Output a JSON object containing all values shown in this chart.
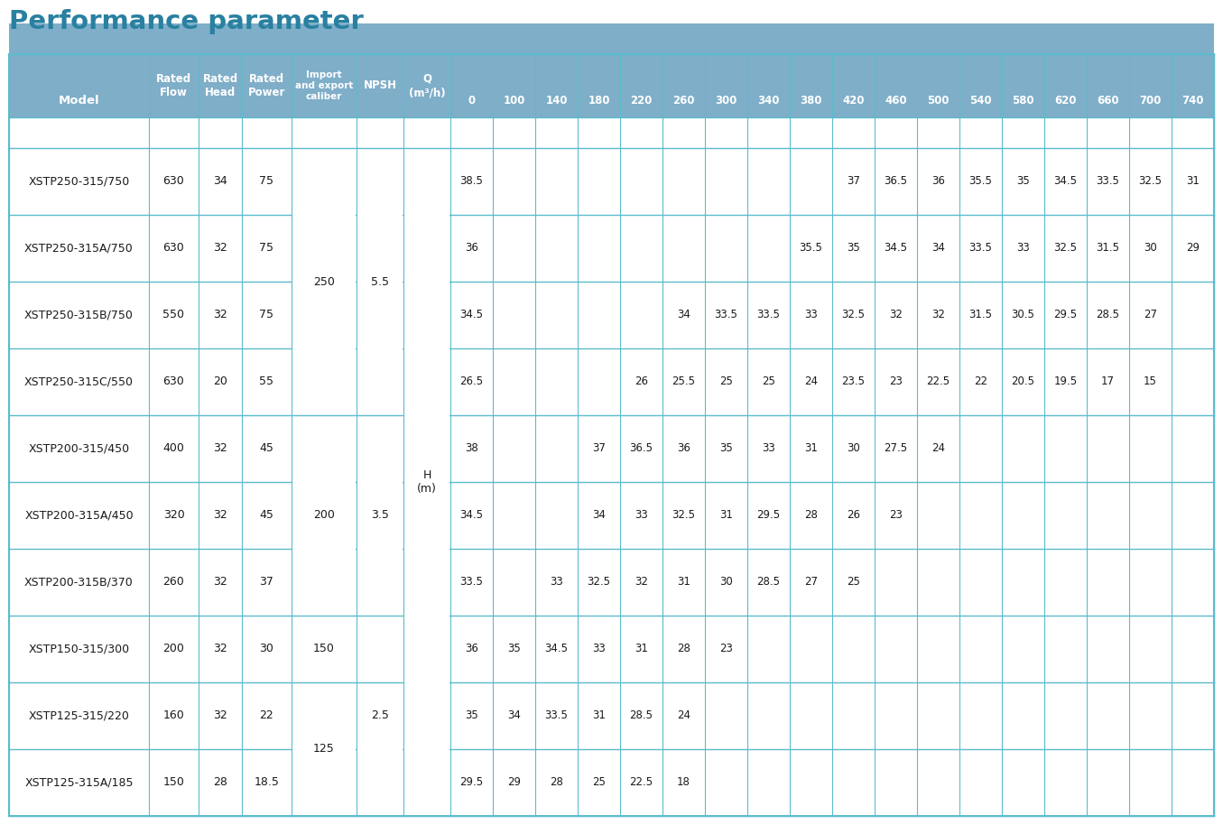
{
  "title": "Performance parameter",
  "title_color": "#2980a0",
  "header_bg": "#7faec8",
  "header_text_color": "#ffffff",
  "grid_color": "#5bbccc",
  "q_values": [
    0,
    100,
    140,
    180,
    220,
    260,
    300,
    340,
    380,
    420,
    460,
    500,
    540,
    580,
    620,
    660,
    700,
    740
  ],
  "rows": [
    {
      "model": "XSTP250-315/750",
      "flow": "630",
      "head": "34",
      "power": "75",
      "h_values": {
        "0": "38.5",
        "420": "37",
        "460": "36.5",
        "500": "36",
        "540": "35.5",
        "580": "35",
        "620": "34.5",
        "660": "33.5",
        "700": "32.5",
        "740": "31"
      }
    },
    {
      "model": "XSTP250-315A/750",
      "flow": "630",
      "head": "32",
      "power": "75",
      "h_values": {
        "0": "36",
        "380": "35.5",
        "420": "35",
        "460": "34.5",
        "500": "34",
        "540": "33.5",
        "580": "33",
        "620": "32.5",
        "660": "31.5",
        "700": "30",
        "740": "29"
      }
    },
    {
      "model": "XSTP250-315B/750",
      "flow": "550",
      "head": "32",
      "power": "75",
      "h_values": {
        "0": "34.5",
        "260": "34",
        "300": "33.5",
        "340": "33.5",
        "380": "33",
        "420": "32.5",
        "460": "32",
        "500": "32",
        "540": "31.5",
        "580": "30.5",
        "620": "29.5",
        "660": "28.5",
        "700": "27"
      }
    },
    {
      "model": "XSTP250-315C/550",
      "flow": "630",
      "head": "20",
      "power": "55",
      "h_values": {
        "0": "26.5",
        "220": "26",
        "260": "25.5",
        "300": "25",
        "340": "25",
        "380": "24",
        "420": "23.5",
        "460": "23",
        "500": "22.5",
        "540": "22",
        "580": "20.5",
        "620": "19.5",
        "660": "17",
        "700": "15"
      }
    },
    {
      "model": "XSTP200-315/450",
      "flow": "400",
      "head": "32",
      "power": "45",
      "h_values": {
        "0": "38",
        "180": "37",
        "220": "36.5",
        "260": "36",
        "300": "35",
        "340": "33",
        "380": "31",
        "420": "30",
        "460": "27.5",
        "500": "24"
      }
    },
    {
      "model": "XSTP200-315A/450",
      "flow": "320",
      "head": "32",
      "power": "45",
      "h_values": {
        "0": "34.5",
        "180": "34",
        "220": "33",
        "260": "32.5",
        "300": "31",
        "340": "29.5",
        "380": "28",
        "420": "26",
        "460": "23"
      }
    },
    {
      "model": "XSTP200-315B/370",
      "flow": "260",
      "head": "32",
      "power": "37",
      "h_values": {
        "0": "33.5",
        "140": "33",
        "180": "32.5",
        "220": "32",
        "260": "31",
        "300": "30",
        "340": "28.5",
        "380": "27",
        "420": "25"
      }
    },
    {
      "model": "XSTP150-315/300",
      "flow": "200",
      "head": "32",
      "power": "30",
      "h_values": {
        "0": "36",
        "100": "35",
        "140": "34.5",
        "180": "33",
        "220": "31",
        "260": "28",
        "300": "23"
      }
    },
    {
      "model": "XSTP125-315/220",
      "flow": "160",
      "head": "32",
      "power": "22",
      "h_values": {
        "0": "35",
        "100": "34",
        "140": "33.5",
        "180": "31",
        "220": "28.5",
        "260": "24"
      }
    },
    {
      "model": "XSTP125-315A/185",
      "flow": "150",
      "head": "28",
      "power": "18.5",
      "h_values": {
        "0": "29.5",
        "100": "29",
        "140": "28",
        "180": "25",
        "220": "22.5",
        "260": "18"
      }
    }
  ],
  "caliber_groups": [
    {
      "rows": [
        0,
        1,
        2,
        3
      ],
      "value": "250",
      "npsh": "5.5"
    },
    {
      "rows": [
        4,
        5,
        6
      ],
      "value": "200",
      "npsh": "3.5"
    },
    {
      "rows": [
        7
      ],
      "value": "150",
      "npsh": ""
    },
    {
      "rows": [
        8,
        9
      ],
      "value": "125",
      "npsh": "2.5"
    }
  ]
}
